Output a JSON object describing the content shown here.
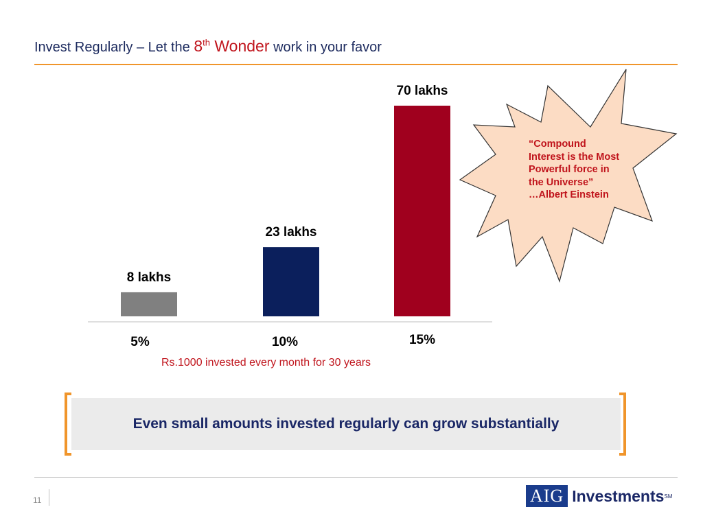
{
  "title": {
    "part1": "Invest Regularly – Let the ",
    "accent_num": "8",
    "accent_sup": "th",
    "accent_word": " Wonder",
    "part2": " work in your favor"
  },
  "chart_data": {
    "type": "bar",
    "categories": [
      "5%",
      "10%",
      "15%"
    ],
    "values": [
      8,
      23,
      70
    ],
    "value_labels": [
      "8 lakhs",
      "23 lakhs",
      "70 lakhs"
    ],
    "colors": [
      "#808080",
      "#0b1f5c",
      "#a0001e"
    ],
    "xlabel": "Rs.1000 invested every month for 30 years",
    "ylabel": "",
    "ylim": [
      0,
      70
    ]
  },
  "quote": {
    "lines": [
      "“Compound",
      "Interest is the Most",
      "Powerful force in",
      "the Universe”",
      "…Albert Einstein"
    ]
  },
  "callout": {
    "text": "Even small amounts invested regularly can grow substantially"
  },
  "footer": {
    "page_number": "11",
    "logo_box": "AIG",
    "logo_text": "Investments",
    "logo_tm": "SM"
  },
  "colors": {
    "accent_orange": "#f0952b",
    "title_navy": "#1c2a5e",
    "red": "#c0141c",
    "burst_fill": "#fcdcc4"
  }
}
